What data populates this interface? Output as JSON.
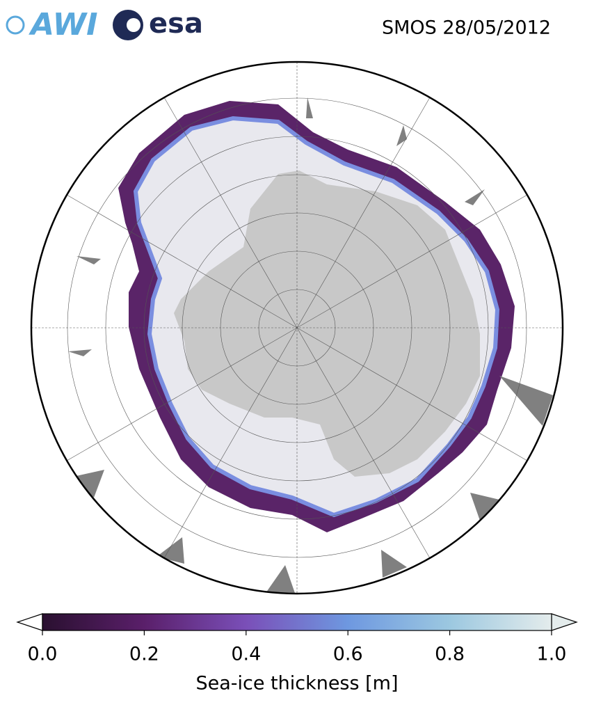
{
  "header": {
    "logos": [
      "AWI",
      "esa"
    ],
    "title": "SMOS 28/05/2012"
  },
  "colorbar": {
    "label": "Sea-ice thickness [m]",
    "lim": [
      0,
      1
    ],
    "ticks": [
      {
        "value": 0,
        "label": "0.0"
      },
      {
        "value": 0.2,
        "label": "0.2"
      },
      {
        "value": 0.4,
        "label": "0.4"
      },
      {
        "value": 0.6,
        "label": "0.6"
      },
      {
        "value": 0.8,
        "label": "0.8"
      },
      {
        "value": 1,
        "label": "1.0"
      }
    ]
  }
}
